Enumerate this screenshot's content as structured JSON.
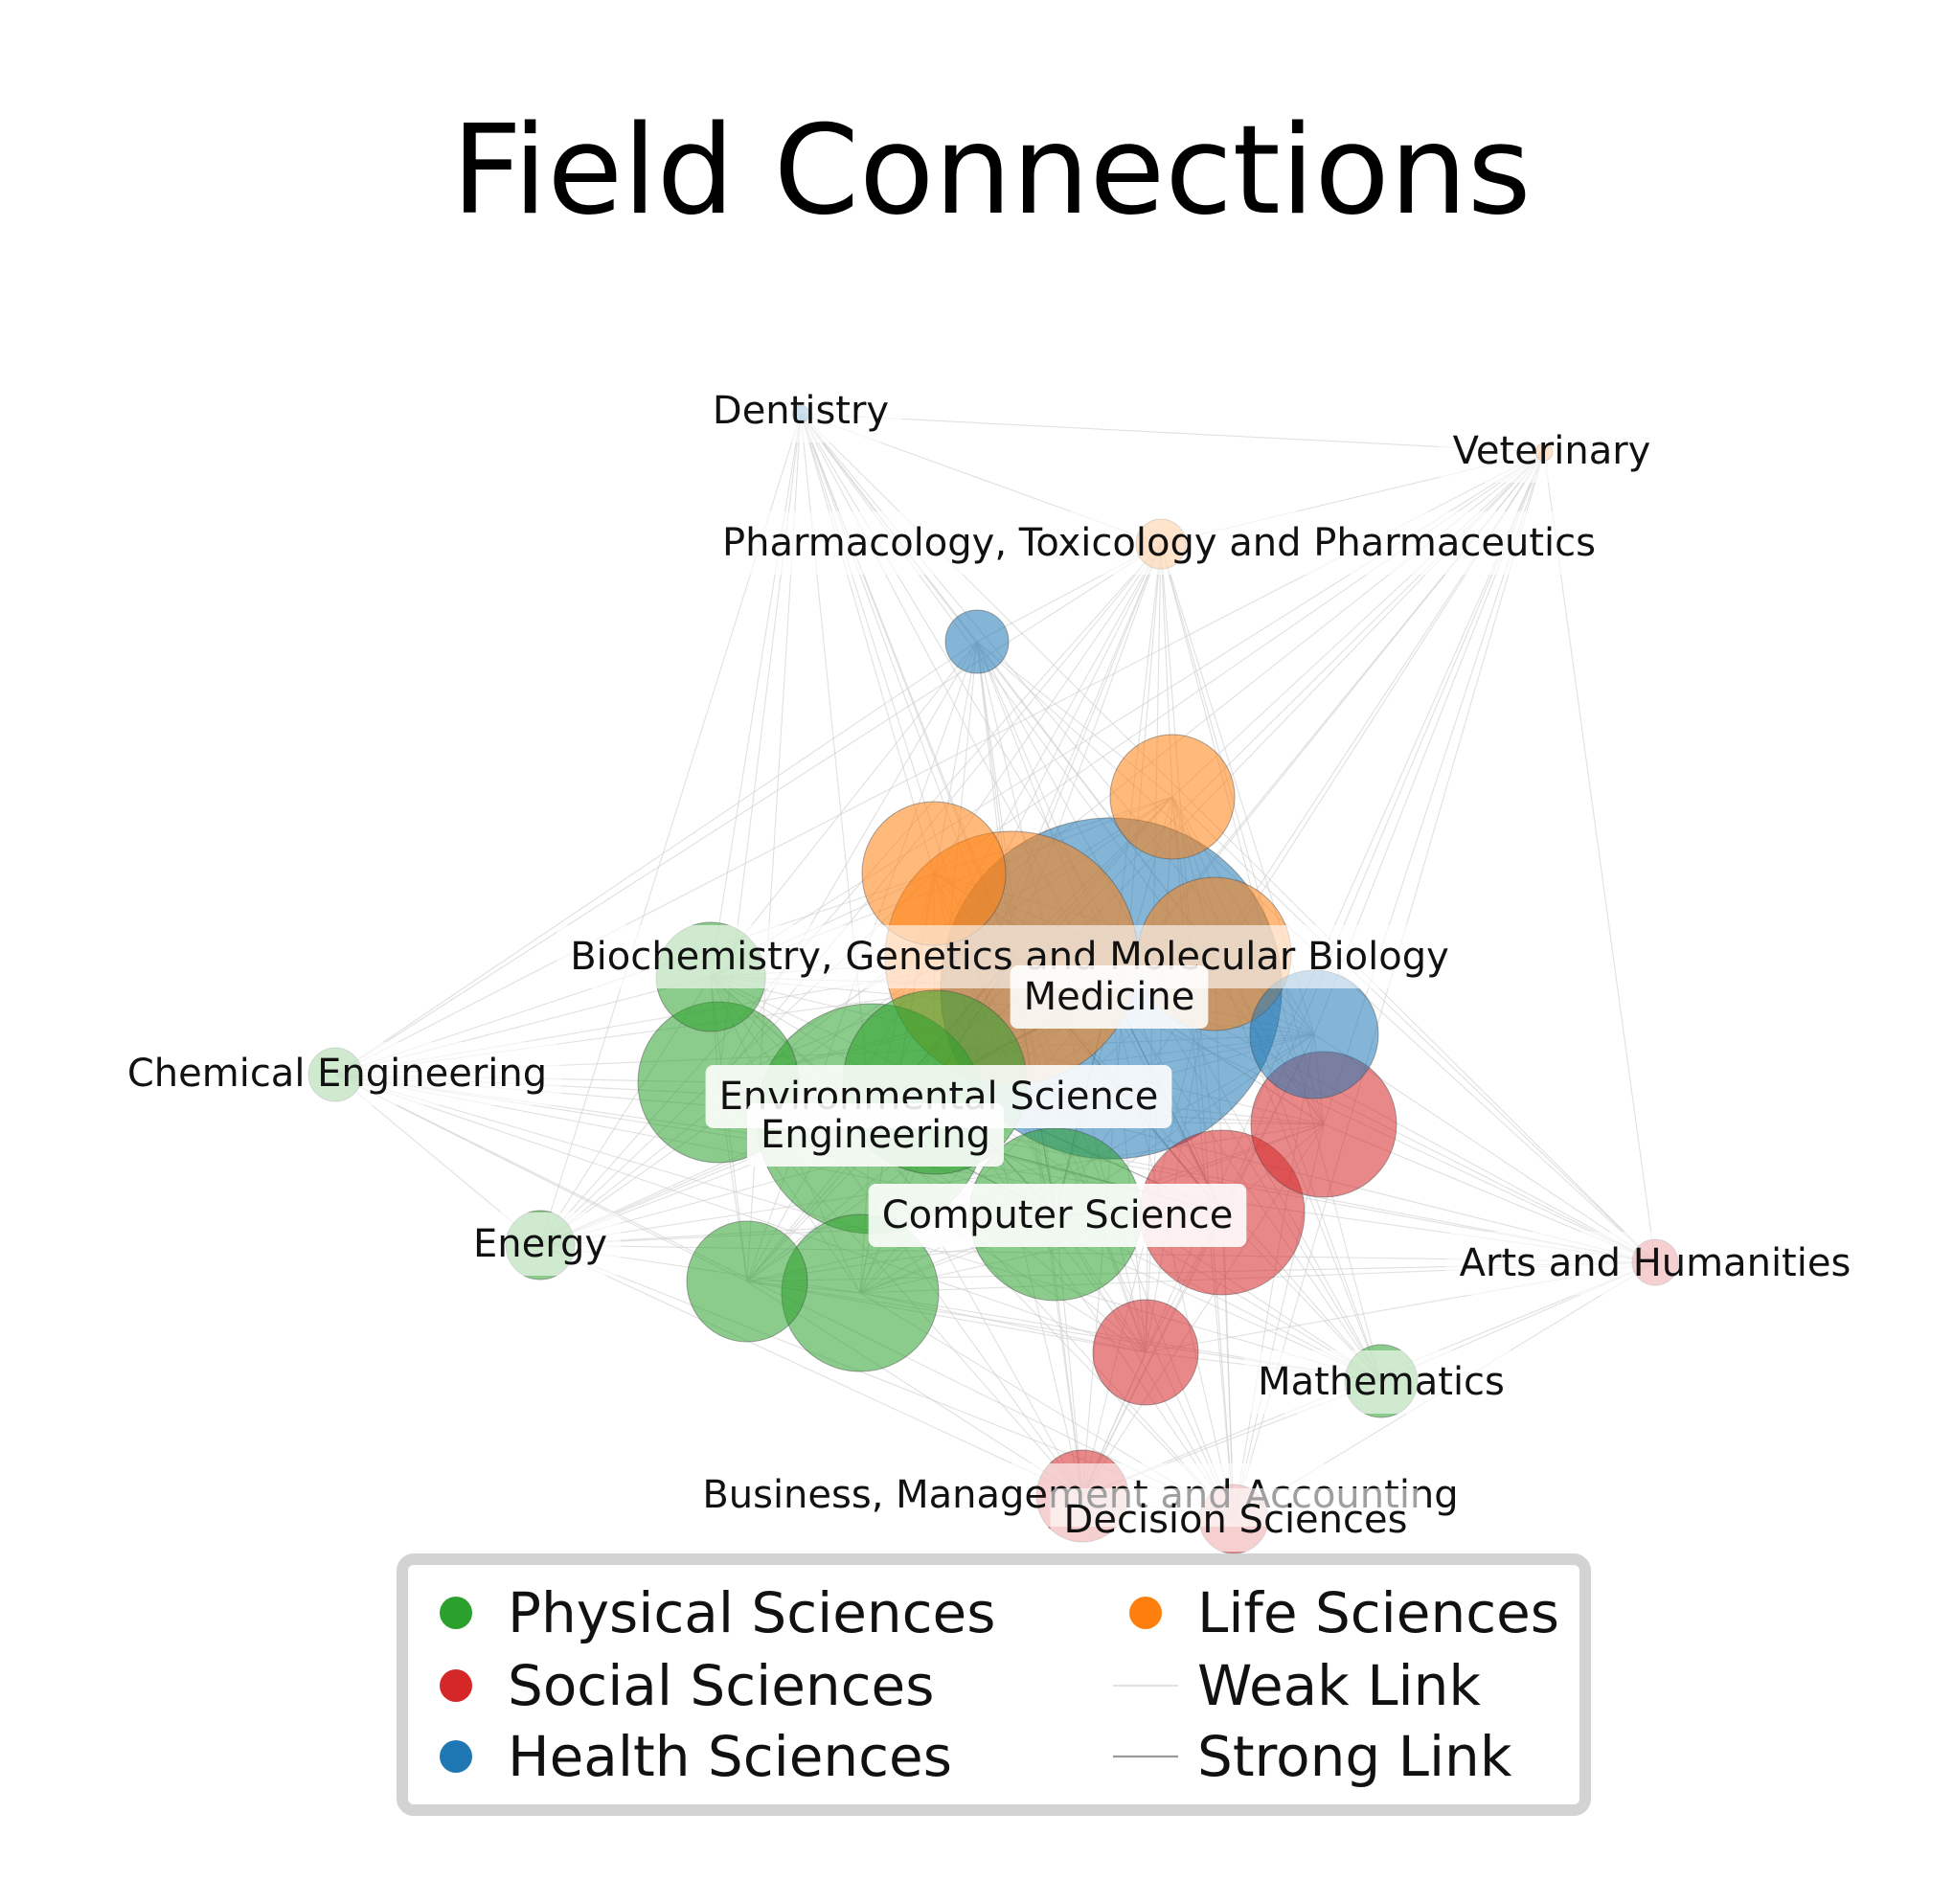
{
  "title": "Field Connections",
  "colors": {
    "physical": "#2ca02c",
    "social": "#d62728",
    "health": "#1f77b4",
    "life": "#ff7f0e",
    "weak_link": "#cfcfcf",
    "strong_link": "#9a9a9a"
  },
  "nodes": [
    {
      "id": "dentistry",
      "label": "Dentistry",
      "group": "health"
    },
    {
      "id": "veterinary",
      "label": "Veterinary",
      "group": "life"
    },
    {
      "id": "pharmacology",
      "label": "Pharmacology, Toxicology and Pharmaceutics",
      "group": "life"
    },
    {
      "id": "nursing",
      "label": "",
      "group": "health"
    },
    {
      "id": "life-small",
      "label": "",
      "group": "life"
    },
    {
      "id": "life-mid",
      "label": "",
      "group": "life"
    },
    {
      "id": "life-right",
      "label": "",
      "group": "life"
    },
    {
      "id": "biochemistry",
      "label": "Biochemistry, Genetics and Molecular Biology",
      "group": "life"
    },
    {
      "id": "medicine",
      "label": "Medicine",
      "group": "health"
    },
    {
      "id": "health-right",
      "label": "",
      "group": "health"
    },
    {
      "id": "phys-upper",
      "label": "",
      "group": "physical"
    },
    {
      "id": "phys-left",
      "label": "",
      "group": "physical"
    },
    {
      "id": "environmental",
      "label": "Environmental Science",
      "group": "physical"
    },
    {
      "id": "engineering",
      "label": "Engineering",
      "group": "physical"
    },
    {
      "id": "computer-science",
      "label": "Computer Science",
      "group": "physical"
    },
    {
      "id": "phys-low-left",
      "label": "",
      "group": "physical"
    },
    {
      "id": "phys-low",
      "label": "",
      "group": "physical"
    },
    {
      "id": "social-right",
      "label": "",
      "group": "social"
    },
    {
      "id": "social-center",
      "label": "",
      "group": "social"
    },
    {
      "id": "social-small",
      "label": "",
      "group": "social"
    },
    {
      "id": "chemical-engineering",
      "label": "Chemical Engineering",
      "group": "physical"
    },
    {
      "id": "energy",
      "label": "Energy",
      "group": "physical"
    },
    {
      "id": "arts",
      "label": "Arts and Humanities",
      "group": "social"
    },
    {
      "id": "mathematics",
      "label": "Mathematics",
      "group": "physical"
    },
    {
      "id": "business",
      "label": "Business, Management and Accounting",
      "group": "social"
    },
    {
      "id": "decision",
      "label": "Decision Sciences",
      "group": "social"
    }
  ],
  "legend": {
    "items": [
      {
        "label": "Physical Sciences",
        "kind": "dot",
        "group": "physical"
      },
      {
        "label": "Social Sciences",
        "kind": "dot",
        "group": "social"
      },
      {
        "label": "Health Sciences",
        "kind": "dot",
        "group": "health"
      },
      {
        "label": "Life Sciences",
        "kind": "dot",
        "group": "life"
      },
      {
        "label": "Weak Link",
        "kind": "line",
        "style": "weak"
      },
      {
        "label": "Strong Link",
        "kind": "line",
        "style": "strong"
      }
    ]
  }
}
